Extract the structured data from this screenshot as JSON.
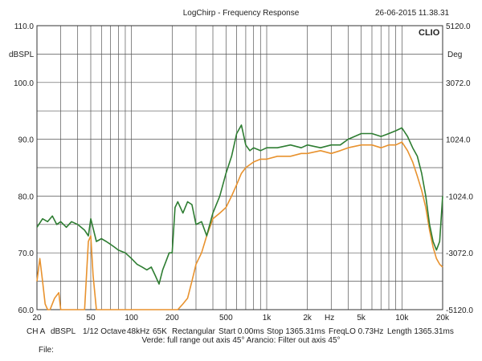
{
  "chart_data": {
    "type": "line",
    "title": "LogChirp - Frequency Response",
    "timestamp": "26-06-2015 11.38.31",
    "brand": "CLIO",
    "y_left_label": "dBSPL",
    "y_right_label": "Deg",
    "x_unit_label": "Hz",
    "x_scale": "log",
    "xlim": [
      20,
      20000
    ],
    "ylim": [
      60,
      110
    ],
    "y_right_lim": [
      -5120,
      5120
    ],
    "grid": true,
    "y_ticks": [
      "110.0",
      "100.0",
      "90.0",
      "80.0",
      "70.0",
      "60.0"
    ],
    "y_tick_values": [
      110,
      100,
      90,
      80,
      70,
      60
    ],
    "y_right_ticks": [
      "5120.0",
      "3072.0",
      "1024.0",
      "-1024.0",
      "-3072.0",
      "-5120.0"
    ],
    "y_right_tick_values": [
      5120,
      3072,
      1024,
      -1024,
      -3072,
      -5120
    ],
    "x_ticks": [
      "20",
      "50",
      "100",
      "200",
      "500",
      "1k",
      "2k",
      "5k",
      "10k",
      "20k"
    ],
    "x_tick_values": [
      20,
      50,
      100,
      200,
      500,
      1000,
      2000,
      5000,
      10000,
      20000
    ],
    "series": [
      {
        "name": "Verde: full range out axis 45°",
        "color": "#2e7d32",
        "x": [
          20,
          22,
          24,
          26,
          28,
          30,
          33,
          36,
          40,
          45,
          48,
          50,
          55,
          60,
          65,
          70,
          75,
          80,
          90,
          100,
          110,
          120,
          130,
          140,
          150,
          160,
          170,
          180,
          190,
          200,
          210,
          220,
          240,
          260,
          280,
          300,
          330,
          360,
          400,
          450,
          500,
          550,
          600,
          650,
          700,
          750,
          800,
          900,
          1000,
          1200,
          1500,
          1800,
          2000,
          2500,
          3000,
          3500,
          4000,
          5000,
          6000,
          7000,
          8000,
          9000,
          10000,
          11000,
          12000,
          13000,
          14000,
          15000,
          16000,
          17000,
          18000,
          19000,
          20000
        ],
        "values": [
          74.5,
          76,
          75.5,
          76.5,
          75,
          75.5,
          74.5,
          75.5,
          75,
          74,
          73,
          76,
          72,
          72.5,
          72,
          71.5,
          71,
          70.5,
          70,
          69,
          68,
          67.5,
          67,
          67.5,
          66,
          64.5,
          67,
          68.5,
          70,
          70,
          78,
          79,
          77,
          79,
          78.5,
          75,
          75.5,
          73,
          77,
          80,
          84,
          87,
          91,
          92.5,
          89,
          88,
          88.5,
          88,
          88.5,
          88.5,
          89,
          88.5,
          89,
          88.5,
          89,
          89,
          90,
          91,
          91,
          90.5,
          91,
          91.5,
          92,
          90.5,
          88.5,
          87,
          84,
          80,
          75,
          72,
          70.5,
          72,
          80
        ]
      },
      {
        "name": "Arancio: Filter out axis 45°",
        "color": "#e8922e",
        "x": [
          20,
          21,
          22,
          23,
          24,
          25,
          27,
          29,
          30,
          32,
          35,
          40,
          45,
          48,
          50,
          52,
          55,
          60,
          65,
          70,
          75,
          80,
          90,
          100,
          110,
          120,
          130,
          140,
          150,
          160,
          170,
          180,
          190,
          200,
          210,
          220,
          240,
          260,
          280,
          300,
          330,
          360,
          400,
          450,
          500,
          550,
          600,
          650,
          700,
          800,
          900,
          1000,
          1200,
          1500,
          1800,
          2000,
          2500,
          3000,
          3500,
          4000,
          5000,
          6000,
          7000,
          8000,
          9000,
          10000,
          11000,
          12000,
          13000,
          14000,
          15000,
          16000,
          17000,
          18000,
          19000,
          20000
        ],
        "values": [
          65,
          69,
          65,
          61,
          60,
          60,
          62,
          63,
          60,
          60,
          60,
          60,
          60,
          72,
          73,
          66,
          60,
          60,
          60,
          60,
          60,
          60,
          60,
          60,
          60,
          60,
          60,
          60,
          60,
          60,
          60,
          60,
          60,
          60,
          60,
          60,
          61,
          62,
          65,
          68,
          70,
          73,
          76,
          77,
          78,
          80,
          82,
          84,
          85,
          86,
          86.5,
          86.5,
          87,
          87,
          87.5,
          87.5,
          88,
          87.5,
          88,
          88.5,
          89,
          89,
          88.5,
          89,
          89,
          89.5,
          88,
          86,
          83.5,
          81,
          78,
          74,
          71,
          69,
          68,
          67.5
        ]
      }
    ],
    "legend_text": "Verde: full range out axis 45° Arancio: Filter out axis 45°"
  },
  "footer": {
    "channel": "CH A",
    "unit": "dBSPL",
    "smoothing": "1/12 Octave",
    "rate": "48kHz",
    "size": "65K",
    "window": "Rectangular",
    "start": "Start 0.00ms",
    "stop": "Stop 1365.31ms",
    "freqlo": "FreqLO 0.73Hz",
    "length": "Length 1365.31ms",
    "file": "File:"
  }
}
